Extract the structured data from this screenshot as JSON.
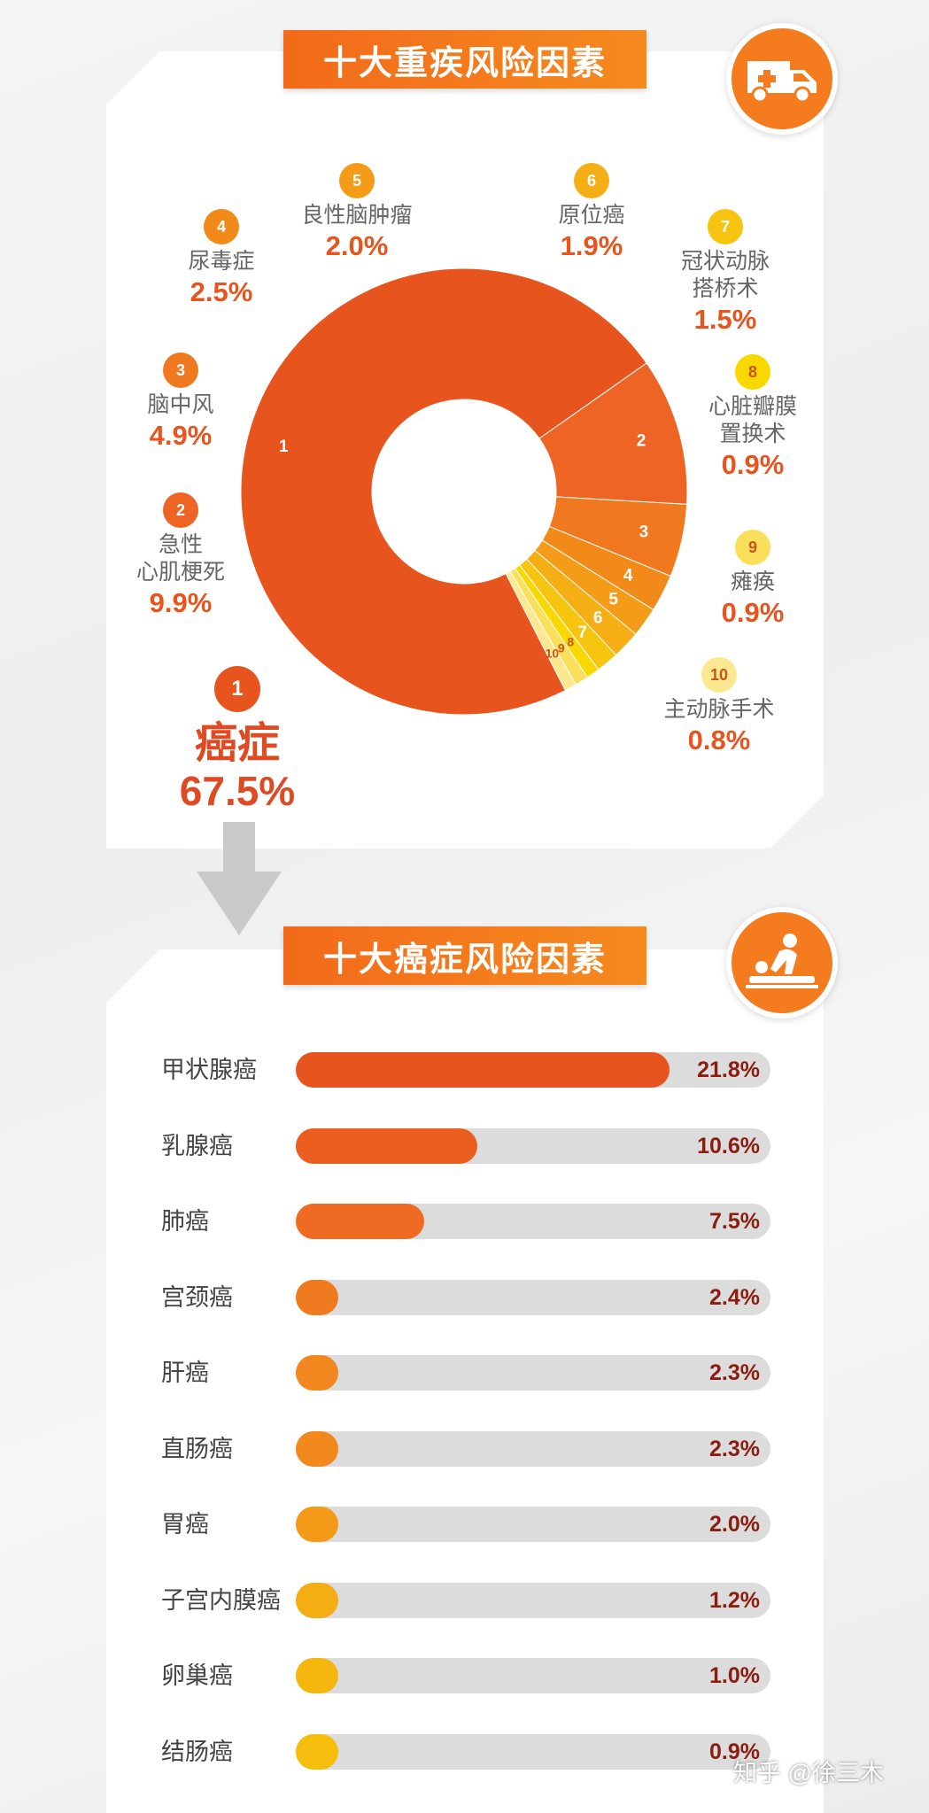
{
  "colors": {
    "accent_orange": "#f26a1a",
    "slices": [
      "#e8541e",
      "#ee6424",
      "#f0781e",
      "#f28a1a",
      "#f49c18",
      "#f5ae14",
      "#f7c410",
      "#f9d800",
      "#fae05a",
      "#fbe890"
    ],
    "pct_text": "#e8541e",
    "bar_track": "#dcdcdc"
  },
  "section1": {
    "title": "十大重疾风险因素",
    "icon": "ambulance-icon"
  },
  "section2": {
    "title": "十大癌症风险因素",
    "icon": "cpr-icon"
  },
  "chart_data": [
    {
      "type": "pie",
      "title": "十大重疾风险因素",
      "categories": [
        "癌症",
        "急性心肌梗死",
        "脑中风",
        "尿毒症",
        "良性脑肿瘤",
        "原位癌",
        "冠状动脉搭桥术",
        "心脏瓣膜置换术",
        "瘫痪",
        "主动脉手术"
      ],
      "rank_labels": [
        "1",
        "2",
        "3",
        "4",
        "5",
        "6",
        "7",
        "8",
        "9",
        "10"
      ],
      "name_lines": [
        [
          "癌症"
        ],
        [
          "急性",
          "心肌梗死"
        ],
        [
          "脑中风"
        ],
        [
          "尿毒症"
        ],
        [
          "良性脑肿瘤"
        ],
        [
          "原位癌"
        ],
        [
          "冠状动脉",
          "搭桥术"
        ],
        [
          "心脏瓣膜",
          "置换术"
        ],
        [
          "瘫痪"
        ],
        [
          "主动脉手术"
        ]
      ],
      "values": [
        67.5,
        9.9,
        4.9,
        2.5,
        2.0,
        1.9,
        1.5,
        0.9,
        0.9,
        0.8
      ],
      "value_labels": [
        "67.5%",
        "9.9%",
        "4.9%",
        "2.5%",
        "2.0%",
        "1.9%",
        "1.5%",
        "0.9%",
        "0.9%",
        "0.8%"
      ],
      "donut": true
    },
    {
      "type": "bar",
      "orientation": "horizontal",
      "title": "十大癌症风险因素",
      "categories": [
        "甲状腺癌",
        "乳腺癌",
        "肺癌",
        "宫颈癌",
        "肝癌",
        "直肠癌",
        "胃癌",
        "子宫内膜癌",
        "卵巢癌",
        "结肠癌"
      ],
      "values": [
        21.8,
        10.6,
        7.5,
        2.4,
        2.3,
        2.3,
        2.0,
        1.2,
        1.0,
        0.9
      ],
      "value_labels": [
        "21.8%",
        "10.6%",
        "7.5%",
        "2.4%",
        "2.3%",
        "2.3%",
        "2.0%",
        "1.2%",
        "1.0%",
        "0.9%"
      ],
      "bar_colors": [
        "#e8541e",
        "#ec5e20",
        "#ef6a22",
        "#f07a20",
        "#f1871e",
        "#f2891e",
        "#f39a18",
        "#f4ad12",
        "#f5b60e",
        "#f6be0c"
      ]
    }
  ],
  "watermark": "知乎 @徐三木"
}
